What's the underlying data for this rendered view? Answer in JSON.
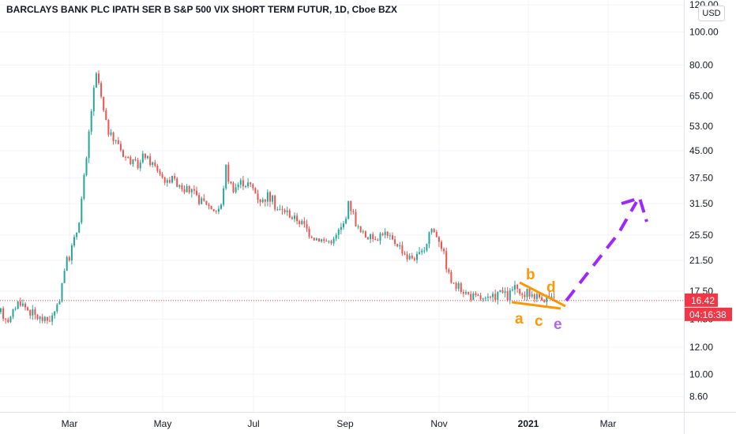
{
  "header": {
    "title": "BARCLAYS BANK PLC IPATH SER B S&P 500 VIX SHORT TERM FUTUR, 1D, Cboe BZX",
    "currency_button": "USD"
  },
  "price_scale": {
    "last_price": "16.42",
    "countdown": "04:16:38",
    "last_price_color": "#f23645",
    "countdown_color": "#f23645"
  },
  "colors": {
    "up": "#26a69a",
    "down": "#ef5350",
    "triangle": "#ff9800",
    "projection": "#9c27ff"
  },
  "chart_data": {
    "type": "candlestick",
    "title": "BARCLAYS BANK PLC IPATH SER B S&P 500 VIX SHORT TERM FUTUR, 1D, Cboe BZX",
    "yscale": "log",
    "ylim": [
      8.1,
      122
    ],
    "y_ticks": [
      "120.00",
      "100.00",
      "80.00",
      "65.00",
      "53.00",
      "45.00",
      "37.50",
      "31.50",
      "25.50",
      "21.50",
      "17.50",
      "14.50",
      "12.00",
      "10.00",
      "8.60"
    ],
    "x_ticks": [
      "Mar",
      "May",
      "Jul",
      "Sep",
      "Nov",
      "2021",
      "Mar"
    ],
    "x_tick_bold": [
      false,
      false,
      false,
      false,
      false,
      true,
      false
    ],
    "last_price": 16.42,
    "grid": true,
    "candle_close_path": [
      [
        0,
        15.2
      ],
      [
        6,
        14.8
      ],
      [
        12,
        14.3
      ],
      [
        18,
        15.6
      ],
      [
        24,
        16.4
      ],
      [
        30,
        15.9
      ],
      [
        36,
        15.4
      ],
      [
        42,
        15.0
      ],
      [
        48,
        14.6
      ],
      [
        54,
        14.5
      ],
      [
        60,
        14.4
      ],
      [
        66,
        14.7
      ],
      [
        71,
        15.3
      ],
      [
        76,
        17.0
      ],
      [
        80,
        19.5
      ],
      [
        84,
        21.5
      ],
      [
        88,
        22.0
      ],
      [
        92,
        24.0
      ],
      [
        96,
        25.5
      ],
      [
        100,
        28.0
      ],
      [
        104,
        33.5
      ],
      [
        107,
        38.5
      ],
      [
        110,
        43.0
      ],
      [
        113,
        52.0
      ],
      [
        117,
        63.0
      ],
      [
        120,
        70.0
      ],
      [
        123,
        77.0
      ],
      [
        126,
        68.0
      ],
      [
        129,
        62.0
      ],
      [
        132,
        57.0
      ],
      [
        136,
        52.0
      ],
      [
        140,
        50.0
      ],
      [
        145,
        48.0
      ],
      [
        150,
        47.5
      ],
      [
        155,
        44.0
      ],
      [
        160,
        43.0
      ],
      [
        165,
        42.5
      ],
      [
        170,
        41.0
      ],
      [
        176,
        40.5
      ],
      [
        182,
        44.0
      ],
      [
        188,
        42.0
      ],
      [
        194,
        41.0
      ],
      [
        200,
        39.5
      ],
      [
        206,
        37.5
      ],
      [
        212,
        36.0
      ],
      [
        218,
        38.5
      ],
      [
        222,
        36.0
      ],
      [
        226,
        36.5
      ],
      [
        232,
        35.0
      ],
      [
        238,
        34.5
      ],
      [
        244,
        33.8
      ],
      [
        250,
        32.5
      ],
      [
        256,
        32.0
      ],
      [
        262,
        31.5
      ],
      [
        268,
        30.5
      ],
      [
        274,
        30.0
      ],
      [
        280,
        31.0
      ],
      [
        286,
        40.5
      ],
      [
        290,
        36.5
      ],
      [
        296,
        35.0
      ],
      [
        302,
        36.0
      ],
      [
        308,
        36.5
      ],
      [
        314,
        36.0
      ],
      [
        320,
        35.0
      ],
      [
        326,
        33.0
      ],
      [
        332,
        32.0
      ],
      [
        338,
        33.5
      ],
      [
        344,
        32.5
      ],
      [
        350,
        30.5
      ],
      [
        356,
        30.0
      ],
      [
        362,
        30.0
      ],
      [
        368,
        29.0
      ],
      [
        374,
        28.5
      ],
      [
        380,
        28.0
      ],
      [
        386,
        27.0
      ],
      [
        392,
        26.0
      ],
      [
        398,
        25.0
      ],
      [
        404,
        25.0
      ],
      [
        410,
        24.5
      ],
      [
        416,
        24.5
      ],
      [
        422,
        24.5
      ],
      [
        428,
        26.0
      ],
      [
        434,
        27.0
      ],
      [
        438,
        29.0
      ],
      [
        442,
        32.0
      ],
      [
        446,
        30.0
      ],
      [
        450,
        28.0
      ],
      [
        456,
        26.0
      ],
      [
        462,
        25.5
      ],
      [
        468,
        25.0
      ],
      [
        474,
        25.0
      ],
      [
        480,
        25.5
      ],
      [
        486,
        26.0
      ],
      [
        492,
        25.0
      ],
      [
        498,
        24.5
      ],
      [
        504,
        24.0
      ],
      [
        510,
        23.0
      ],
      [
        516,
        22.0
      ],
      [
        522,
        22.0
      ],
      [
        528,
        22.0
      ],
      [
        534,
        22.5
      ],
      [
        540,
        24.0
      ],
      [
        545,
        27.0
      ],
      [
        550,
        26.0
      ],
      [
        556,
        25.0
      ],
      [
        562,
        22.5
      ],
      [
        566,
        20.5
      ],
      [
        570,
        19.0
      ],
      [
        576,
        18.0
      ],
      [
        582,
        17.8
      ],
      [
        588,
        17.5
      ],
      [
        594,
        17.0
      ],
      [
        600,
        16.8
      ],
      [
        606,
        16.8
      ],
      [
        612,
        16.5
      ],
      [
        618,
        16.5
      ],
      [
        624,
        16.6
      ],
      [
        630,
        17.3
      ],
      [
        636,
        17.4
      ],
      [
        642,
        16.7
      ],
      [
        648,
        17.5
      ],
      [
        652,
        18.2
      ],
      [
        656,
        17.0
      ],
      [
        660,
        16.8
      ],
      [
        664,
        17.1
      ],
      [
        668,
        17.3
      ],
      [
        672,
        17.2
      ],
      [
        676,
        17.0
      ],
      [
        680,
        16.9
      ],
      [
        684,
        16.8
      ],
      [
        688,
        16.7
      ],
      [
        692,
        16.8
      ],
      [
        696,
        16.6
      ],
      [
        700,
        16.5
      ],
      [
        704,
        16.4
      ]
    ],
    "annotations": {
      "triangle_labels": [
        "a",
        "b",
        "c",
        "d",
        "e"
      ],
      "projection": "dashed upward projection line"
    }
  }
}
